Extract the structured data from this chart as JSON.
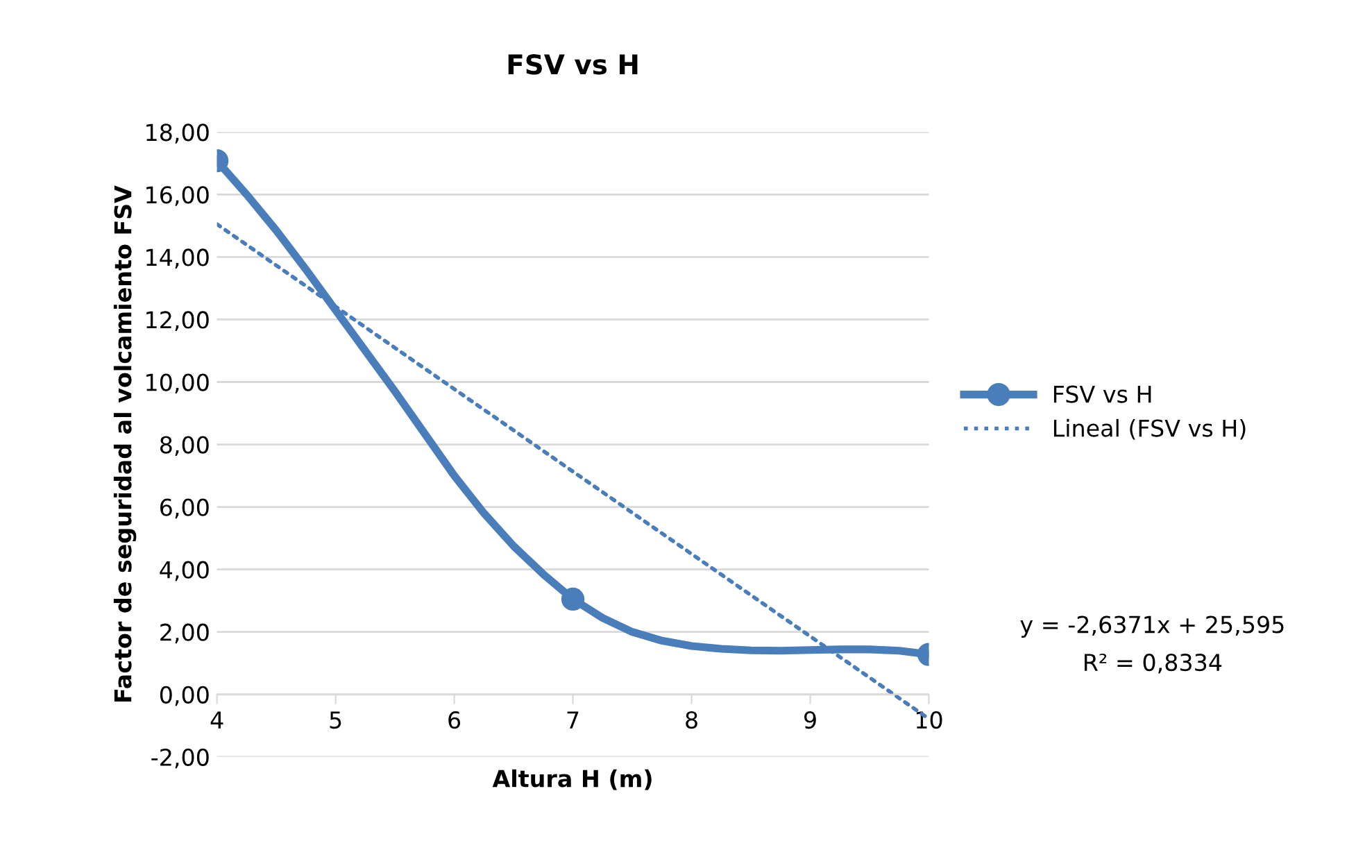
{
  "chart_data": {
    "type": "line",
    "title": "FSV vs H",
    "xlabel": "Altura H (m)",
    "ylabel": "Factor de seguridad al volcamiento FSV",
    "x": [
      4,
      7,
      10
    ],
    "series": [
      {
        "name": "FSV vs H",
        "color": "#4a7ebb",
        "x": [
          4,
          4.25,
          4.5,
          4.75,
          5,
          5.25,
          5.5,
          5.75,
          6,
          6.25,
          6.5,
          6.75,
          7,
          7.25,
          7.5,
          7.75,
          8,
          8.25,
          8.5,
          8.75,
          9,
          9.25,
          9.5,
          9.75,
          10
        ],
        "values": [
          17.08,
          16.0,
          14.85,
          13.6,
          12.3,
          11.0,
          9.7,
          8.35,
          7.0,
          5.8,
          4.75,
          3.85,
          3.05,
          2.45,
          2.0,
          1.72,
          1.55,
          1.46,
          1.41,
          1.4,
          1.42,
          1.44,
          1.44,
          1.4,
          1.28
        ],
        "marker": "none",
        "line_style": "solid"
      },
      {
        "color": "#4a7ebb",
        "type": "scatter",
        "values": [
          17.08,
          3.05,
          1.28
        ],
        "marker": "circle"
      },
      {
        "name": "Lineal (FSV vs H)",
        "color": "#4a7ebb",
        "type": "line",
        "x": [
          4,
          10
        ],
        "values": [
          15.05,
          -0.78
        ],
        "marker": "none",
        "line_style": "dotted"
      }
    ],
    "xlim": [
      4,
      10
    ],
    "xticks": [
      4,
      5,
      6,
      7,
      8,
      9,
      10
    ],
    "ylim": [
      -2,
      18
    ],
    "yticks": [
      {
        "value": -2,
        "label": "-2,00"
      },
      {
        "value": 0,
        "label": "0,00"
      },
      {
        "value": 2,
        "label": "2,00"
      },
      {
        "value": 4,
        "label": "4,00"
      },
      {
        "value": 6,
        "label": "6,00"
      },
      {
        "value": 8,
        "label": "8,00"
      },
      {
        "value": 10,
        "label": "10,00"
      },
      {
        "value": 12,
        "label": "12,00"
      },
      {
        "value": 14,
        "label": "14,00"
      },
      {
        "value": 16,
        "label": "16,00"
      },
      {
        "value": 18,
        "label": "18,00"
      }
    ],
    "grid": "y",
    "legend": "right",
    "annotations": [
      "y = -2,6371x + 25,595",
      "R² = 0,8334"
    ]
  }
}
